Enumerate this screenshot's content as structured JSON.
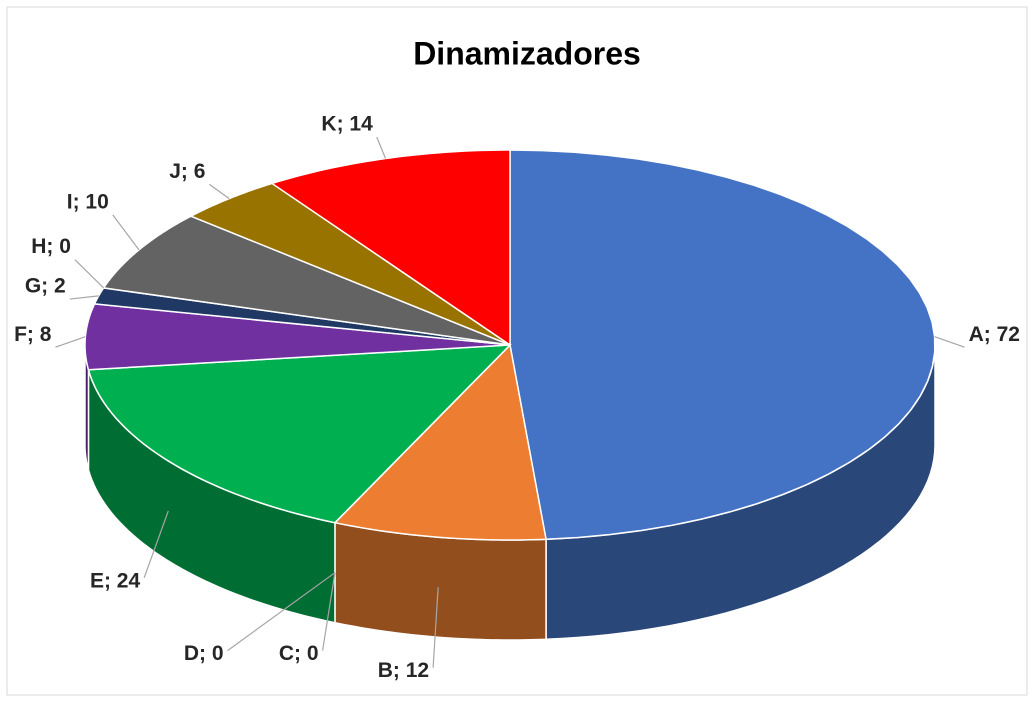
{
  "chart_data": {
    "type": "pie",
    "title": "Dinamizadores",
    "categories": [
      "A",
      "B",
      "C",
      "D",
      "E",
      "F",
      "G",
      "H",
      "I",
      "J",
      "K"
    ],
    "values": [
      72,
      12,
      0,
      0,
      24,
      8,
      2,
      0,
      10,
      6,
      14
    ],
    "value_labels": [
      "A; 72",
      "B; 12",
      "C; 0",
      "D; 0",
      "E; 24",
      "F; 8",
      "G; 2",
      "H; 0",
      "I; 10",
      "J; 6",
      "K; 14"
    ],
    "colors": [
      "#4472c4",
      "#ed7d31",
      "#a5a5a5",
      "#ffc000",
      "#00b050",
      "#7030a0",
      "#1f3864",
      "#255e91",
      "#636363",
      "#997300",
      "#ff0000"
    ]
  }
}
